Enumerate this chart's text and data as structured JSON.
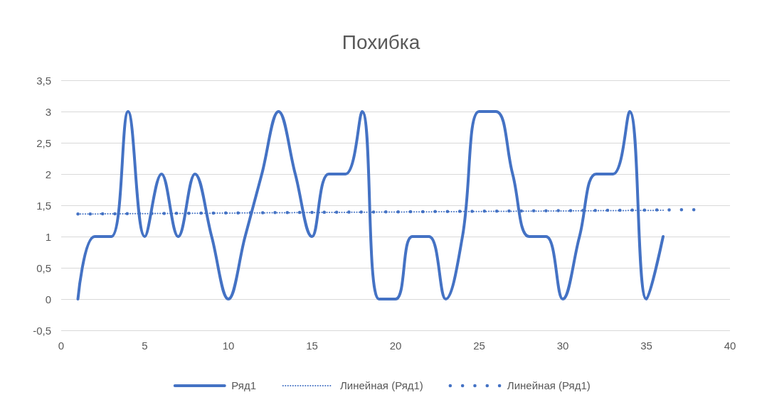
{
  "chart_data": {
    "type": "line",
    "title": "Похибка",
    "xlim": [
      0,
      40
    ],
    "xticks": [
      0,
      5,
      10,
      15,
      20,
      25,
      30,
      35,
      40
    ],
    "ylim": [
      -0.5,
      3.5
    ],
    "yticks": [
      {
        "value": -0.5,
        "label": "-0,5"
      },
      0,
      {
        "value": 0.5,
        "label": "0,5"
      },
      1,
      {
        "value": 1.5,
        "label": "1,5"
      },
      2,
      {
        "value": 2.5,
        "label": "2,5"
      },
      3,
      {
        "value": 3.5,
        "label": "3,5"
      }
    ],
    "grid": "y",
    "legend": "bottom",
    "marker": "none",
    "series": [
      {
        "name": "Ряд1",
        "color": "#4472c4",
        "line_style": "solid",
        "x": [
          1,
          2,
          3,
          4,
          5,
          6,
          7,
          8,
          9,
          10,
          11,
          12,
          13,
          14,
          15,
          16,
          17,
          18,
          19,
          20,
          21,
          22,
          23,
          24,
          25,
          26,
          27,
          28,
          29,
          30,
          31,
          32,
          33,
          34,
          35,
          36
        ],
        "values": [
          0,
          1,
          1,
          3,
          1,
          2,
          1,
          2,
          1,
          0,
          1,
          2,
          3,
          2,
          1,
          2,
          2,
          3,
          0,
          0,
          1,
          1,
          0,
          1,
          3,
          3,
          2,
          1,
          1,
          0,
          1,
          2,
          2,
          3,
          0,
          1
        ]
      },
      {
        "name": "Линейная (Ряд1)",
        "color": "#4472c4",
        "line_style": "dotted",
        "x": [
          1,
          36
        ],
        "values": [
          1.36,
          1.42
        ]
      },
      {
        "name": "Линейная (Ряд1)",
        "color": "#4472c4",
        "line_style": "dotted",
        "x": [
          1,
          38
        ],
        "values": [
          1.36,
          1.43
        ]
      }
    ]
  }
}
